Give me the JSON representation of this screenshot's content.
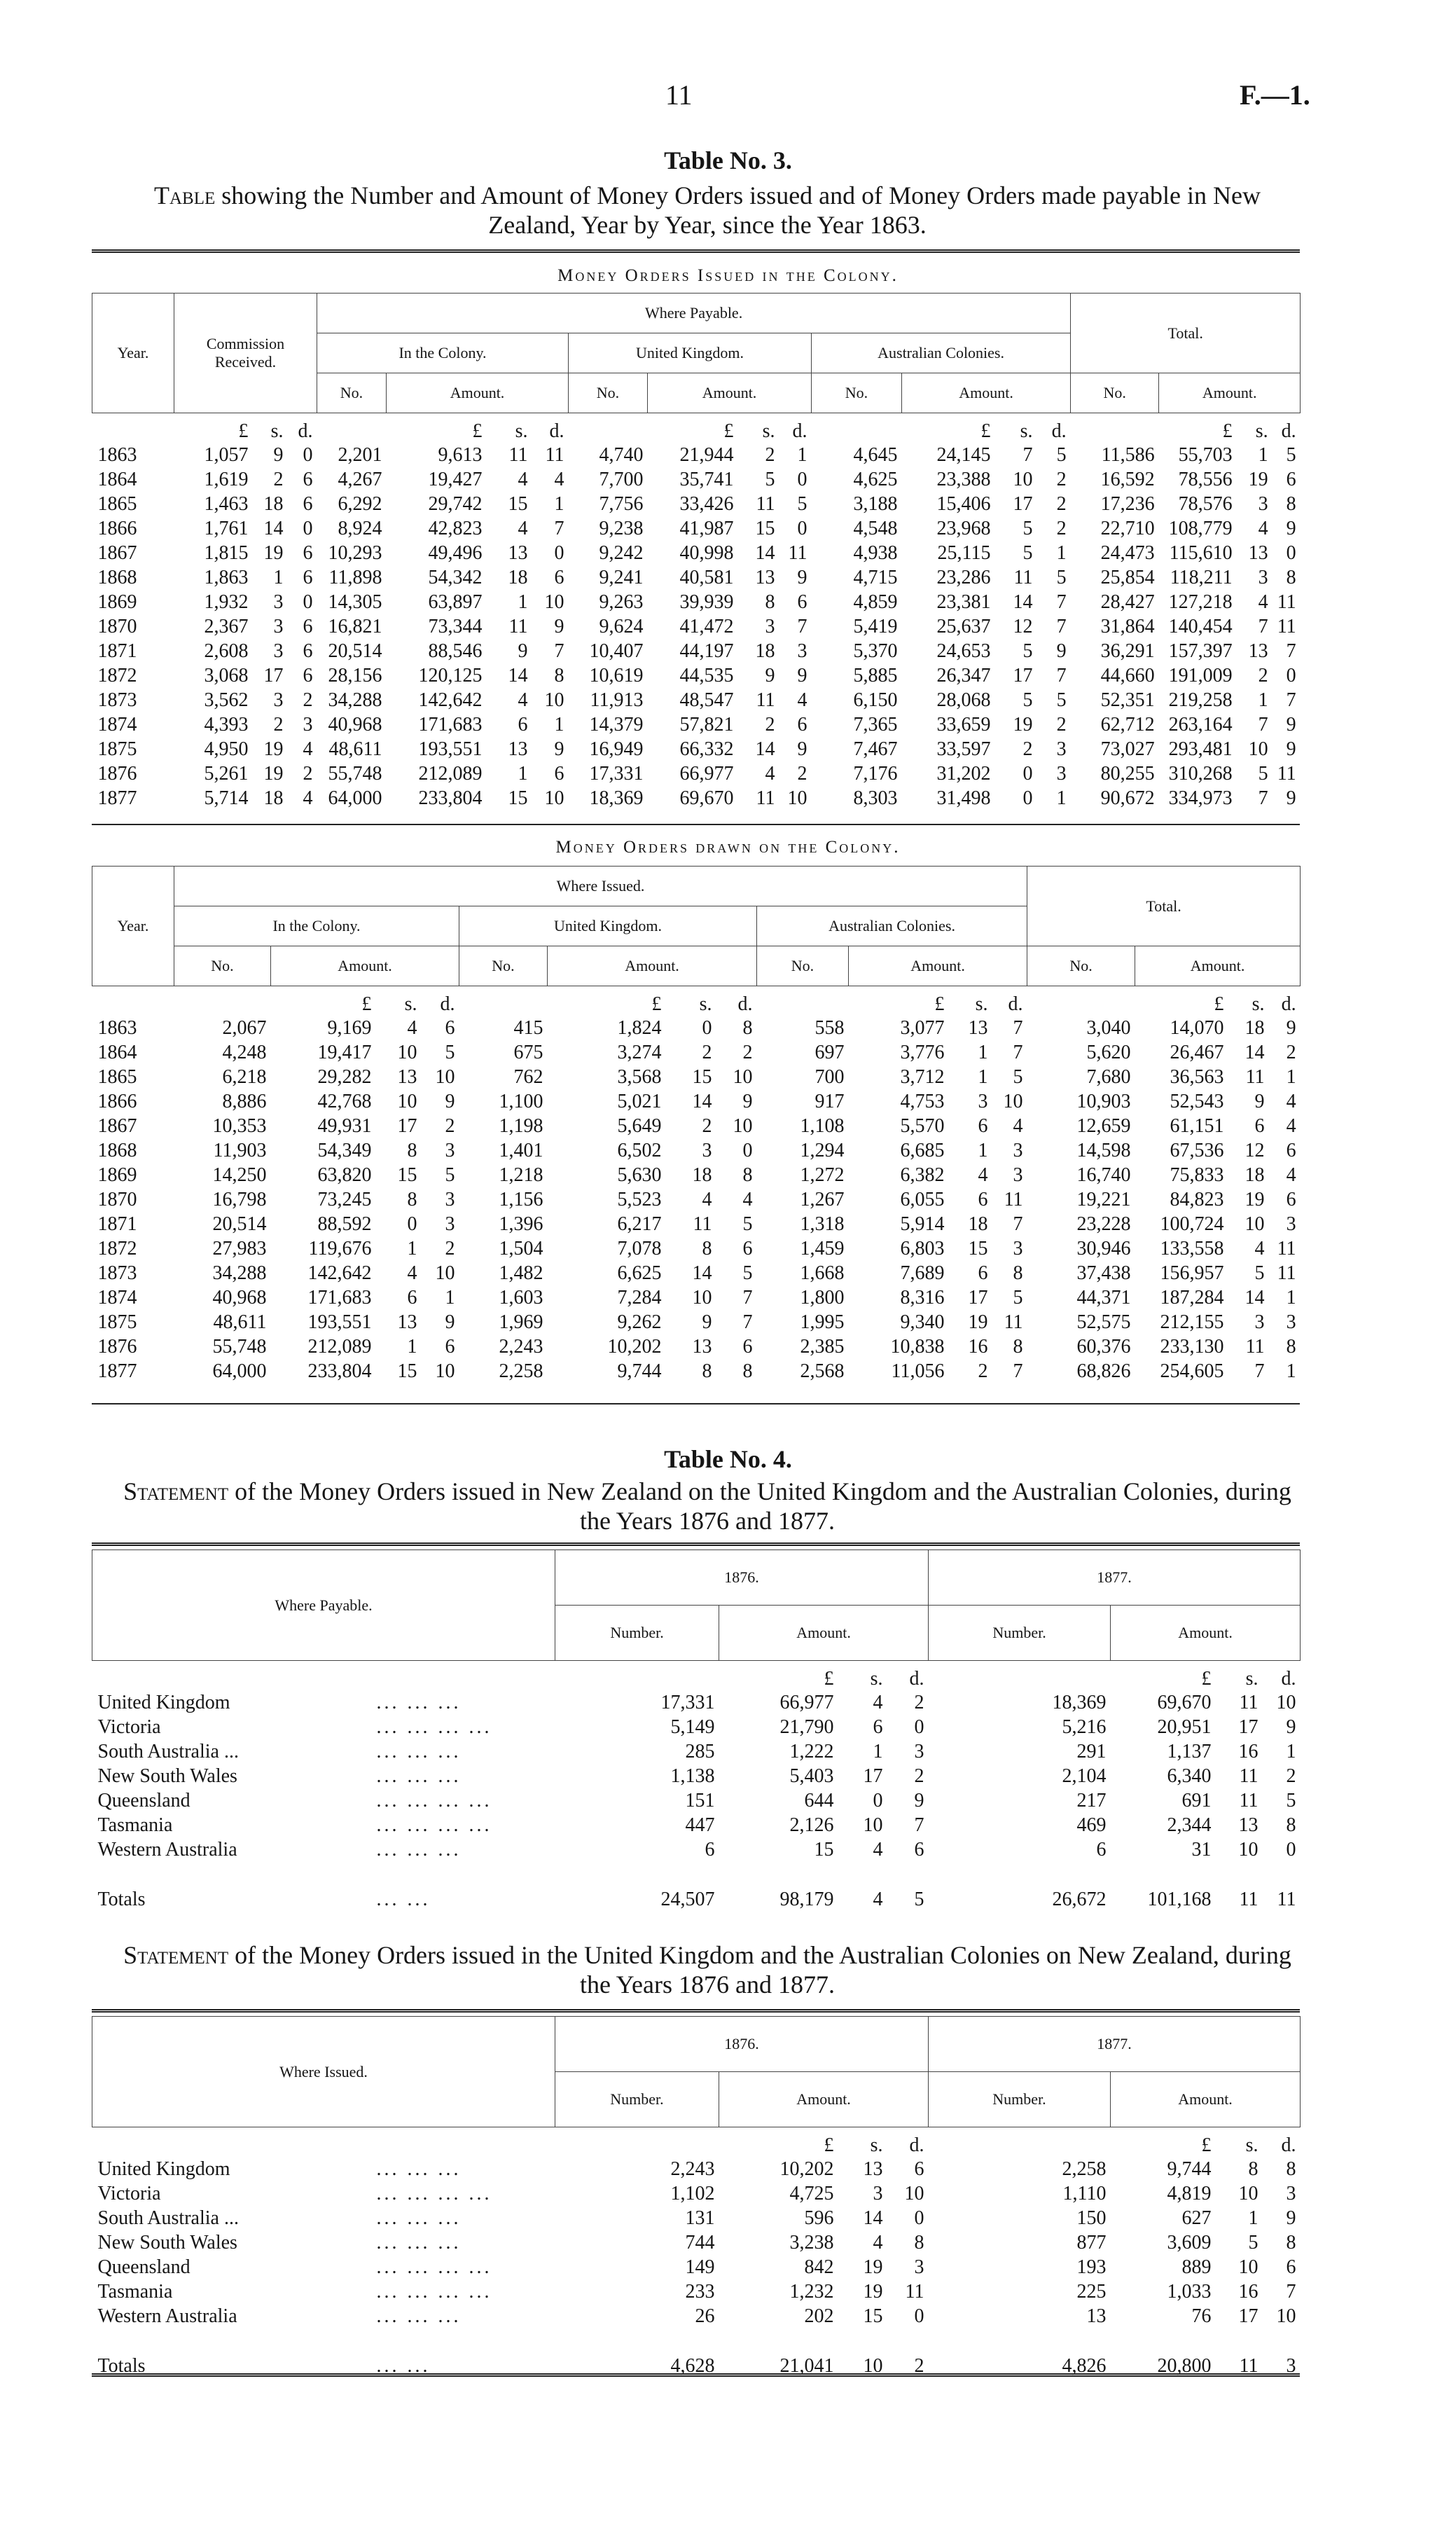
{
  "header": {
    "page": "11",
    "ref": "F.—1."
  },
  "table3": {
    "title": "Table No. 3.",
    "caption_lead": "Table",
    "caption": "showing the Number and Amount of Money Orders issued and of Money Orders made payable in New Zealand, Year by Year, since the Year 1863.",
    "units": [
      "£",
      "s.",
      "d."
    ],
    "issued": {
      "title": "Money Orders Issued in the Colony.",
      "year": "Year.",
      "commission": "Commission Received.",
      "where": "Where Payable.",
      "colony": "In the Colony.",
      "uk": "United Kingdom.",
      "aus": "Australian Colonies.",
      "total": "Total.",
      "no": "No.",
      "amount": "Amount.",
      "rows": [
        [
          "1863",
          "1,057",
          "9",
          "0",
          "2,201",
          "9,613",
          "11",
          "11",
          "4,740",
          "21,944",
          "2",
          "1",
          "4,645",
          "24,145",
          "7",
          "5",
          "11,586",
          "55,703",
          "1",
          "5"
        ],
        [
          "1864",
          "1,619",
          "2",
          "6",
          "4,267",
          "19,427",
          "4",
          "4",
          "7,700",
          "35,741",
          "5",
          "0",
          "4,625",
          "23,388",
          "10",
          "2",
          "16,592",
          "78,556",
          "19",
          "6"
        ],
        [
          "1865",
          "1,463",
          "18",
          "6",
          "6,292",
          "29,742",
          "15",
          "1",
          "7,756",
          "33,426",
          "11",
          "5",
          "3,188",
          "15,406",
          "17",
          "2",
          "17,236",
          "78,576",
          "3",
          "8"
        ],
        [
          "1866",
          "1,761",
          "14",
          "0",
          "8,924",
          "42,823",
          "4",
          "7",
          "9,238",
          "41,987",
          "15",
          "0",
          "4,548",
          "23,968",
          "5",
          "2",
          "22,710",
          "108,779",
          "4",
          "9"
        ],
        [
          "1867",
          "1,815",
          "19",
          "6",
          "10,293",
          "49,496",
          "13",
          "0",
          "9,242",
          "40,998",
          "14",
          "11",
          "4,938",
          "25,115",
          "5",
          "1",
          "24,473",
          "115,610",
          "13",
          "0"
        ],
        [
          "1868",
          "1,863",
          "1",
          "6",
          "11,898",
          "54,342",
          "18",
          "6",
          "9,241",
          "40,581",
          "13",
          "9",
          "4,715",
          "23,286",
          "11",
          "5",
          "25,854",
          "118,211",
          "3",
          "8"
        ],
        [
          "1869",
          "1,932",
          "3",
          "0",
          "14,305",
          "63,897",
          "1",
          "10",
          "9,263",
          "39,939",
          "8",
          "6",
          "4,859",
          "23,381",
          "14",
          "7",
          "28,427",
          "127,218",
          "4",
          "11"
        ],
        [
          "1870",
          "2,367",
          "3",
          "6",
          "16,821",
          "73,344",
          "11",
          "9",
          "9,624",
          "41,472",
          "3",
          "7",
          "5,419",
          "25,637",
          "12",
          "7",
          "31,864",
          "140,454",
          "7",
          "11"
        ],
        [
          "1871",
          "2,608",
          "3",
          "6",
          "20,514",
          "88,546",
          "9",
          "7",
          "10,407",
          "44,197",
          "18",
          "3",
          "5,370",
          "24,653",
          "5",
          "9",
          "36,291",
          "157,397",
          "13",
          "7"
        ],
        [
          "1872",
          "3,068",
          "17",
          "6",
          "28,156",
          "120,125",
          "14",
          "8",
          "10,619",
          "44,535",
          "9",
          "9",
          "5,885",
          "26,347",
          "17",
          "7",
          "44,660",
          "191,009",
          "2",
          "0"
        ],
        [
          "1873",
          "3,562",
          "3",
          "2",
          "34,288",
          "142,642",
          "4",
          "10",
          "11,913",
          "48,547",
          "11",
          "4",
          "6,150",
          "28,068",
          "5",
          "5",
          "52,351",
          "219,258",
          "1",
          "7"
        ],
        [
          "1874",
          "4,393",
          "2",
          "3",
          "40,968",
          "171,683",
          "6",
          "1",
          "14,379",
          "57,821",
          "2",
          "6",
          "7,365",
          "33,659",
          "19",
          "2",
          "62,712",
          "263,164",
          "7",
          "9"
        ],
        [
          "1875",
          "4,950",
          "19",
          "4",
          "48,611",
          "193,551",
          "13",
          "9",
          "16,949",
          "66,332",
          "14",
          "9",
          "7,467",
          "33,597",
          "2",
          "3",
          "73,027",
          "293,481",
          "10",
          "9"
        ],
        [
          "1876",
          "5,261",
          "19",
          "2",
          "55,748",
          "212,089",
          "1",
          "6",
          "17,331",
          "66,977",
          "4",
          "2",
          "7,176",
          "31,202",
          "0",
          "3",
          "80,255",
          "310,268",
          "5",
          "11"
        ],
        [
          "1877",
          "5,714",
          "18",
          "4",
          "64,000",
          "233,804",
          "15",
          "10",
          "18,369",
          "69,670",
          "11",
          "10",
          "8,303",
          "31,498",
          "0",
          "1",
          "90,672",
          "334,973",
          "7",
          "9"
        ]
      ]
    },
    "drawn": {
      "title": "Money Orders drawn on the Colony.",
      "year": "Year.",
      "where": "Where Issued.",
      "colony": "In the Colony.",
      "uk": "United Kingdom.",
      "aus": "Australian Colonies.",
      "total": "Total.",
      "no": "No.",
      "amount": "Amount.",
      "rows": [
        [
          "1863",
          "2,067",
          "9,169",
          "4",
          "6",
          "415",
          "1,824",
          "0",
          "8",
          "558",
          "3,077",
          "13",
          "7",
          "3,040",
          "14,070",
          "18",
          "9"
        ],
        [
          "1864",
          "4,248",
          "19,417",
          "10",
          "5",
          "675",
          "3,274",
          "2",
          "2",
          "697",
          "3,776",
          "1",
          "7",
          "5,620",
          "26,467",
          "14",
          "2"
        ],
        [
          "1865",
          "6,218",
          "29,282",
          "13",
          "10",
          "762",
          "3,568",
          "15",
          "10",
          "700",
          "3,712",
          "1",
          "5",
          "7,680",
          "36,563",
          "11",
          "1"
        ],
        [
          "1866",
          "8,886",
          "42,768",
          "10",
          "9",
          "1,100",
          "5,021",
          "14",
          "9",
          "917",
          "4,753",
          "3",
          "10",
          "10,903",
          "52,543",
          "9",
          "4"
        ],
        [
          "1867",
          "10,353",
          "49,931",
          "17",
          "2",
          "1,198",
          "5,649",
          "2",
          "10",
          "1,108",
          "5,570",
          "6",
          "4",
          "12,659",
          "61,151",
          "6",
          "4"
        ],
        [
          "1868",
          "11,903",
          "54,349",
          "8",
          "3",
          "1,401",
          "6,502",
          "3",
          "0",
          "1,294",
          "6,685",
          "1",
          "3",
          "14,598",
          "67,536",
          "12",
          "6"
        ],
        [
          "1869",
          "14,250",
          "63,820",
          "15",
          "5",
          "1,218",
          "5,630",
          "18",
          "8",
          "1,272",
          "6,382",
          "4",
          "3",
          "16,740",
          "75,833",
          "18",
          "4"
        ],
        [
          "1870",
          "16,798",
          "73,245",
          "8",
          "3",
          "1,156",
          "5,523",
          "4",
          "4",
          "1,267",
          "6,055",
          "6",
          "11",
          "19,221",
          "84,823",
          "19",
          "6"
        ],
        [
          "1871",
          "20,514",
          "88,592",
          "0",
          "3",
          "1,396",
          "6,217",
          "11",
          "5",
          "1,318",
          "5,914",
          "18",
          "7",
          "23,228",
          "100,724",
          "10",
          "3"
        ],
        [
          "1872",
          "27,983",
          "119,676",
          "1",
          "2",
          "1,504",
          "7,078",
          "8",
          "6",
          "1,459",
          "6,803",
          "15",
          "3",
          "30,946",
          "133,558",
          "4",
          "11"
        ],
        [
          "1873",
          "34,288",
          "142,642",
          "4",
          "10",
          "1,482",
          "6,625",
          "14",
          "5",
          "1,668",
          "7,689",
          "6",
          "8",
          "37,438",
          "156,957",
          "5",
          "11"
        ],
        [
          "1874",
          "40,968",
          "171,683",
          "6",
          "1",
          "1,603",
          "7,284",
          "10",
          "7",
          "1,800",
          "8,316",
          "17",
          "5",
          "44,371",
          "187,284",
          "14",
          "1"
        ],
        [
          "1875",
          "48,611",
          "193,551",
          "13",
          "9",
          "1,969",
          "9,262",
          "9",
          "7",
          "1,995",
          "9,340",
          "19",
          "11",
          "52,575",
          "212,155",
          "3",
          "3"
        ],
        [
          "1876",
          "55,748",
          "212,089",
          "1",
          "6",
          "2,243",
          "10,202",
          "13",
          "6",
          "2,385",
          "10,838",
          "16",
          "8",
          "60,376",
          "233,130",
          "11",
          "8"
        ],
        [
          "1877",
          "64,000",
          "233,804",
          "15",
          "10",
          "2,258",
          "9,744",
          "8",
          "8",
          "2,568",
          "11,056",
          "2",
          "7",
          "68,826",
          "254,605",
          "7",
          "1"
        ]
      ]
    }
  },
  "table4": {
    "title": "Table No. 4.",
    "units": [
      "£",
      "s.",
      "d."
    ],
    "issued": {
      "caption_lead": "Statement",
      "caption": "of the Money Orders issued in New Zealand on the United Kingdom and the Australian Colonies, during the Years 1876 and 1877.",
      "where": "Where Payable.",
      "year1": "1876.",
      "year2": "1877.",
      "number": "Number.",
      "amount": "Amount.",
      "rows": [
        [
          "United Kingdom",
          "... ... ...",
          "17,331",
          "66,977",
          "4",
          "2",
          "18,369",
          "69,670",
          "11",
          "10"
        ],
        [
          "Victoria",
          "... ... ... ...",
          "5,149",
          "21,790",
          "6",
          "0",
          "5,216",
          "20,951",
          "17",
          "9"
        ],
        [
          "South Australia ...",
          "... ... ...",
          "285",
          "1,222",
          "1",
          "3",
          "291",
          "1,137",
          "16",
          "1"
        ],
        [
          "New South Wales",
          "... ... ...",
          "1,138",
          "5,403",
          "17",
          "2",
          "2,104",
          "6,340",
          "11",
          "2"
        ],
        [
          "Queensland",
          "... ... ... ...",
          "151",
          "644",
          "0",
          "9",
          "217",
          "691",
          "11",
          "5"
        ],
        [
          "Tasmania",
          "... ... ... ...",
          "447",
          "2,126",
          "10",
          "7",
          "469",
          "2,344",
          "13",
          "8"
        ],
        [
          "Western Australia",
          "... ... ...",
          "6",
          "15",
          "4",
          "6",
          "6",
          "31",
          "10",
          "0"
        ],
        [
          "Totals",
          "... ...",
          "24,507",
          "98,179",
          "4",
          "5",
          "26,672",
          "101,168",
          "11",
          "11"
        ]
      ]
    },
    "drawn": {
      "caption_lead": "Statement",
      "caption": "of the Money Orders issued in the United Kingdom and the Australian Colonies on New Zealand, during the Years 1876 and 1877.",
      "where": "Where Issued.",
      "year1": "1876.",
      "year2": "1877.",
      "number": "Number.",
      "amount": "Amount.",
      "rows": [
        [
          "United Kingdom",
          "... ... ...",
          "2,243",
          "10,202",
          "13",
          "6",
          "2,258",
          "9,744",
          "8",
          "8"
        ],
        [
          "Victoria",
          "... ... ... ...",
          "1,102",
          "4,725",
          "3",
          "10",
          "1,110",
          "4,819",
          "10",
          "3"
        ],
        [
          "South Australia ...",
          "... ... ...",
          "131",
          "596",
          "14",
          "0",
          "150",
          "627",
          "1",
          "9"
        ],
        [
          "New South Wales",
          "... ... ...",
          "744",
          "3,238",
          "4",
          "8",
          "877",
          "3,609",
          "5",
          "8"
        ],
        [
          "Queensland",
          "... ... ... ...",
          "149",
          "842",
          "19",
          "3",
          "193",
          "889",
          "10",
          "6"
        ],
        [
          "Tasmania",
          "... ... ... ...",
          "233",
          "1,232",
          "19",
          "11",
          "225",
          "1,033",
          "16",
          "7"
        ],
        [
          "Western Australia",
          "... ... ...",
          "26",
          "202",
          "15",
          "0",
          "13",
          "76",
          "17",
          "10"
        ],
        [
          "Totals",
          "... ...",
          "4,628",
          "21,041",
          "10",
          "2",
          "4,826",
          "20,800",
          "11",
          "3"
        ]
      ]
    }
  }
}
